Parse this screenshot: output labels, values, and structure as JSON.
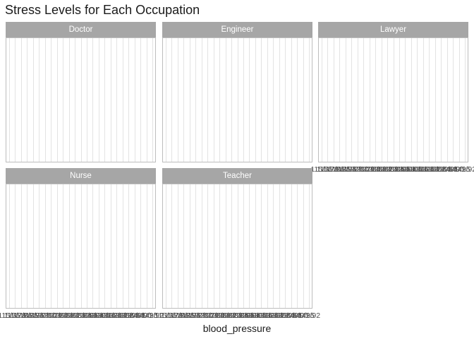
{
  "title": "Stress Levels for Each Occupation",
  "chart_data": {
    "type": "scatter",
    "title": "Stress Levels for Each Occupation",
    "xlabel": "blood_pressure",
    "ylabel": "",
    "facet_by": "Occupation",
    "facets": [
      "Doctor",
      "Engineer",
      "Lawyer",
      "Nurse",
      "Teacher"
    ],
    "x_tick_labels": [
      "115/75",
      "115/78",
      "117/76",
      "118/75",
      "118/76",
      "119/77",
      "120/80",
      "121/79",
      "122/80",
      "125/80",
      "125/82",
      "126/83",
      "128/84",
      "128/85",
      "129/84",
      "130/85",
      "130/86",
      "131/86",
      "132/87",
      "135/88",
      "135/90",
      "139/91",
      "140/90",
      "140/95",
      "142/92"
    ],
    "x_axis_visible_in_facets": [
      "Lawyer",
      "Nurse",
      "Teacher"
    ],
    "series": [],
    "grid": true
  },
  "colors": {
    "strip_background": "#a6a6a6",
    "strip_text": "#ffffff",
    "panel_border": "#bdbdbd",
    "grid": "#e3e3e3"
  }
}
